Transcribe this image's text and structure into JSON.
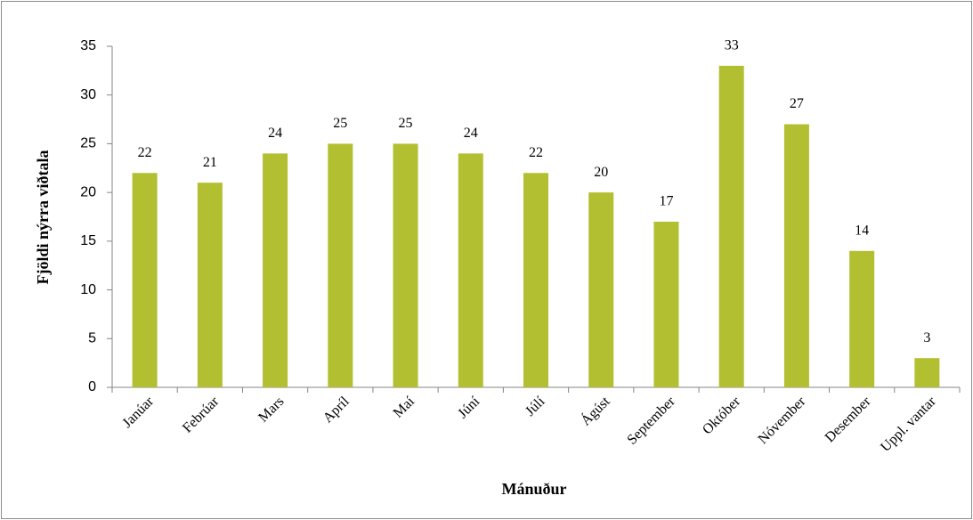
{
  "chart_data": {
    "type": "bar",
    "x_label": "Mánuður",
    "y_label": "Fjöldi nýrra viðtala",
    "categories": [
      "Janúar",
      "Febrúar",
      "Mars",
      "Apríl",
      "Maí",
      "Júní",
      "Júlí",
      "Ágúst",
      "September",
      "Október",
      "Nóvember",
      "Desember",
      "Uppl. vantar"
    ],
    "values": [
      22,
      21,
      24,
      25,
      25,
      24,
      22,
      20,
      17,
      33,
      27,
      14,
      3
    ],
    "color": "#b2bf30",
    "ylim": [
      0,
      35
    ],
    "yticks": [
      0,
      5,
      10,
      15,
      20,
      25,
      30,
      35
    ],
    "grid": false
  }
}
